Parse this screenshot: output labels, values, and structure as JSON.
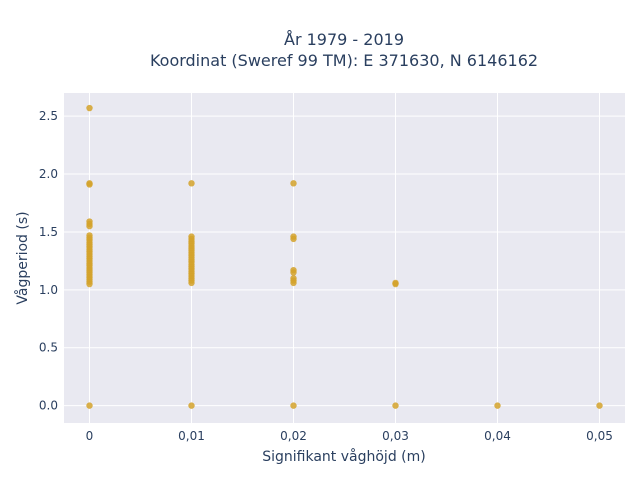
{
  "chart_data": {
    "type": "scatter",
    "title_line1": "År 1979 - 2019",
    "title_line2": "Koordinat (Sweref 99 TM): E 371630, N 6146162",
    "xlabel": "Signifikant våghöjd (m)",
    "ylabel": "Vågperiod (s)",
    "xlim": [
      -0.0025,
      0.0525
    ],
    "ylim": [
      -0.15,
      2.7
    ],
    "x_ticks": [
      {
        "value": 0,
        "label": "0"
      },
      {
        "value": 0.01,
        "label": "0,01"
      },
      {
        "value": 0.02,
        "label": "0,02"
      },
      {
        "value": 0.03,
        "label": "0,03"
      },
      {
        "value": 0.04,
        "label": "0,04"
      },
      {
        "value": 0.05,
        "label": "0,05"
      }
    ],
    "y_ticks": [
      {
        "value": 0,
        "label": "0.0"
      },
      {
        "value": 0.5,
        "label": "0.5"
      },
      {
        "value": 1.0,
        "label": "1.0"
      },
      {
        "value": 1.5,
        "label": "1.5"
      },
      {
        "value": 2.0,
        "label": "2.0"
      },
      {
        "value": 2.5,
        "label": "2.5"
      }
    ],
    "grid": true,
    "colors": {
      "marker": "#d4a22a",
      "plot_bg": "#e9e9f1",
      "grid": "#ffffff"
    },
    "points": [
      {
        "x": 0,
        "y": 2.57
      },
      {
        "x": 0,
        "y": 1.92
      },
      {
        "x": 0,
        "y": 1.91
      },
      {
        "x": 0,
        "y": 1.59
      },
      {
        "x": 0,
        "y": 1.57
      },
      {
        "x": 0,
        "y": 1.55
      },
      {
        "x": 0,
        "y": 1.47
      },
      {
        "x": 0,
        "y": 1.45
      },
      {
        "x": 0,
        "y": 1.43
      },
      {
        "x": 0,
        "y": 1.41
      },
      {
        "x": 0,
        "y": 1.39
      },
      {
        "x": 0,
        "y": 1.37
      },
      {
        "x": 0,
        "y": 1.35
      },
      {
        "x": 0,
        "y": 1.33
      },
      {
        "x": 0,
        "y": 1.31
      },
      {
        "x": 0,
        "y": 1.29
      },
      {
        "x": 0,
        "y": 1.27
      },
      {
        "x": 0,
        "y": 1.25
      },
      {
        "x": 0,
        "y": 1.23
      },
      {
        "x": 0,
        "y": 1.21
      },
      {
        "x": 0,
        "y": 1.19
      },
      {
        "x": 0,
        "y": 1.17
      },
      {
        "x": 0,
        "y": 1.15
      },
      {
        "x": 0,
        "y": 1.13
      },
      {
        "x": 0,
        "y": 1.11
      },
      {
        "x": 0,
        "y": 1.09
      },
      {
        "x": 0,
        "y": 1.07
      },
      {
        "x": 0,
        "y": 1.05
      },
      {
        "x": 0,
        "y": 0.0
      },
      {
        "x": 0.01,
        "y": 1.92
      },
      {
        "x": 0.01,
        "y": 1.46
      },
      {
        "x": 0.01,
        "y": 1.44
      },
      {
        "x": 0.01,
        "y": 1.42
      },
      {
        "x": 0.01,
        "y": 1.4
      },
      {
        "x": 0.01,
        "y": 1.38
      },
      {
        "x": 0.01,
        "y": 1.36
      },
      {
        "x": 0.01,
        "y": 1.34
      },
      {
        "x": 0.01,
        "y": 1.32
      },
      {
        "x": 0.01,
        "y": 1.3
      },
      {
        "x": 0.01,
        "y": 1.28
      },
      {
        "x": 0.01,
        "y": 1.26
      },
      {
        "x": 0.01,
        "y": 1.24
      },
      {
        "x": 0.01,
        "y": 1.22
      },
      {
        "x": 0.01,
        "y": 1.2
      },
      {
        "x": 0.01,
        "y": 1.18
      },
      {
        "x": 0.01,
        "y": 1.16
      },
      {
        "x": 0.01,
        "y": 1.14
      },
      {
        "x": 0.01,
        "y": 1.12
      },
      {
        "x": 0.01,
        "y": 1.1
      },
      {
        "x": 0.01,
        "y": 1.08
      },
      {
        "x": 0.01,
        "y": 1.06
      },
      {
        "x": 0.01,
        "y": 0.0
      },
      {
        "x": 0.02,
        "y": 1.92
      },
      {
        "x": 0.02,
        "y": 1.46
      },
      {
        "x": 0.02,
        "y": 1.44
      },
      {
        "x": 0.02,
        "y": 1.17
      },
      {
        "x": 0.02,
        "y": 1.15
      },
      {
        "x": 0.02,
        "y": 1.1
      },
      {
        "x": 0.02,
        "y": 1.08
      },
      {
        "x": 0.02,
        "y": 1.06
      },
      {
        "x": 0.02,
        "y": 0.0
      },
      {
        "x": 0.03,
        "y": 1.06
      },
      {
        "x": 0.03,
        "y": 1.05
      },
      {
        "x": 0.03,
        "y": 0.0
      },
      {
        "x": 0.04,
        "y": 0.0
      },
      {
        "x": 0.05,
        "y": 0.0
      }
    ]
  }
}
